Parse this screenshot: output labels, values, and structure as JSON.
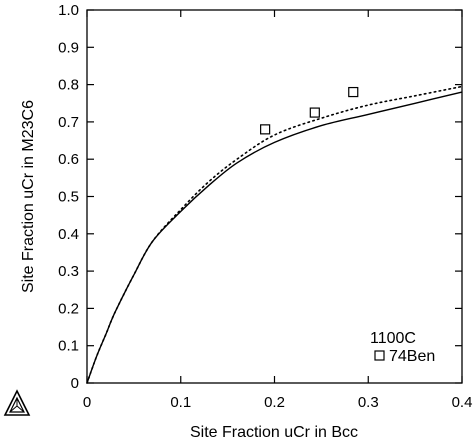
{
  "chart_data": {
    "type": "line",
    "title": "",
    "xlabel": "Site Fraction uCr in Bcc",
    "ylabel": "Site Fraction uCr in M23C6",
    "xlim": [
      0,
      0.4
    ],
    "ylim": [
      0,
      1.0
    ],
    "x_ticks": [
      0,
      0.1,
      0.2,
      0.3,
      0.4
    ],
    "x_tick_labels": [
      "0",
      "0.1",
      "0.2",
      "0.3",
      "0.4"
    ],
    "y_ticks": [
      0,
      0.1,
      0.2,
      0.3,
      0.4,
      0.5,
      0.6,
      0.7,
      0.8,
      0.9,
      1.0
    ],
    "y_tick_labels": [
      "0",
      "0.1",
      "0.2",
      "0.3",
      "0.4",
      "0.5",
      "0.6",
      "0.7",
      "0.8",
      "0.9",
      "1.0"
    ],
    "grid": false,
    "series": [
      {
        "style": "solid",
        "x": [
          0,
          0.01,
          0.02,
          0.03,
          0.05,
          0.07,
          0.1,
          0.13,
          0.16,
          0.2,
          0.25,
          0.3,
          0.35,
          0.4
        ],
        "y": [
          0,
          0.07,
          0.13,
          0.19,
          0.29,
          0.38,
          0.46,
          0.53,
          0.59,
          0.645,
          0.69,
          0.72,
          0.75,
          0.78
        ]
      },
      {
        "style": "dotted",
        "x": [
          0,
          0.01,
          0.02,
          0.03,
          0.05,
          0.07,
          0.1,
          0.13,
          0.16,
          0.2,
          0.25,
          0.3,
          0.35,
          0.4
        ],
        "y": [
          0,
          0.07,
          0.13,
          0.19,
          0.29,
          0.38,
          0.465,
          0.54,
          0.6,
          0.665,
          0.71,
          0.745,
          0.77,
          0.795
        ]
      }
    ],
    "points": {
      "name": "74Ben",
      "marker": "square",
      "x": [
        0.19,
        0.243,
        0.284
      ],
      "y": [
        0.68,
        0.725,
        0.78
      ]
    },
    "annotations": {
      "temperature": "1100C",
      "legend_label": "74Ben"
    }
  }
}
